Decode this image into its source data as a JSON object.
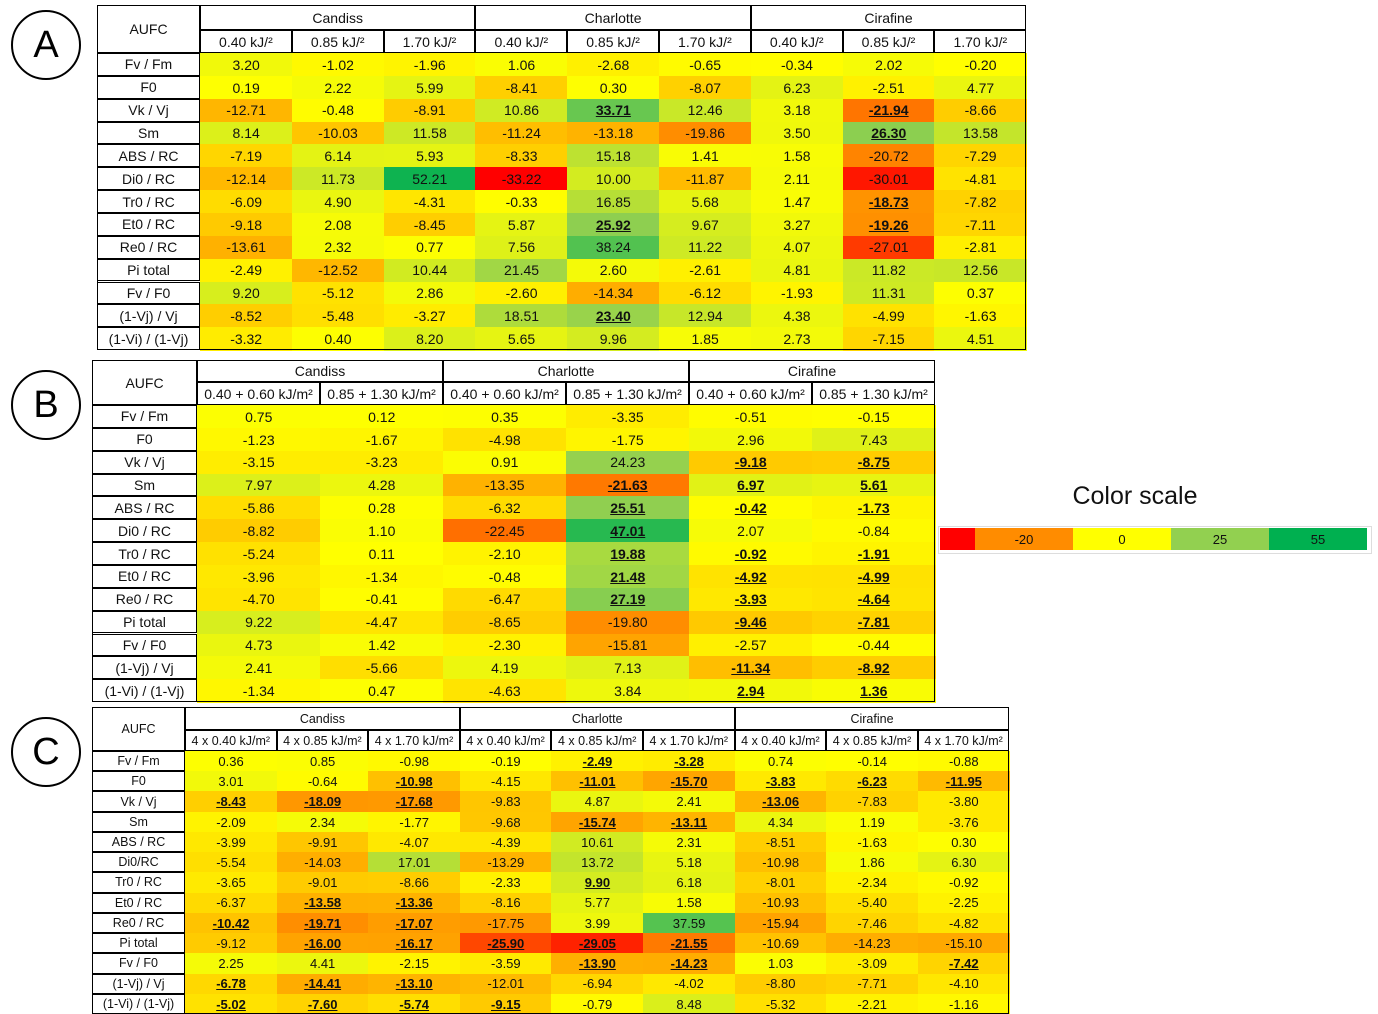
{
  "panels": [
    {
      "label": "A",
      "table": {
        "corner": "AUFC",
        "groups": [
          "Candiss",
          "Charlotte",
          "Cirafine"
        ],
        "columns": [
          "0.40 kJ/²",
          "0.85 kJ/²",
          "1.70 kJ/²",
          "0.40 kJ/²",
          "0.85 kJ/²",
          "1.70 kJ/²",
          "0.40 kJ/²",
          "0.85 kJ/²",
          "1.70 kJ/²"
        ],
        "rows": [
          {
            "label": "Fv / Fm",
            "cells": [
              "3.20",
              "-1.02",
              "-1.96",
              "1.06",
              "-2.68",
              "-0.65",
              "-0.34",
              "2.02",
              "-0.20"
            ]
          },
          {
            "label": "F0",
            "cells": [
              "0.19",
              "2.22",
              "5.99",
              "-8.41",
              "0.30",
              "-8.07",
              "6.23",
              "-2.51",
              "4.77"
            ]
          },
          {
            "label": "Vk / Vj",
            "cells": [
              "-12.71",
              "-0.48",
              "-8.91",
              "10.86",
              "33.71",
              "12.46",
              "3.18",
              "-21.94",
              "-8.66"
            ]
          },
          {
            "label": "Sm",
            "cells": [
              "8.14",
              "-10.03",
              "11.58",
              "-11.24",
              "-13.18",
              "-19.86",
              "3.50",
              "26.30",
              "13.58"
            ]
          },
          {
            "label": "ABS / RC",
            "cells": [
              "-7.19",
              "6.14",
              "5.93",
              "-8.33",
              "15.18",
              "1.41",
              "1.58",
              "-20.72",
              "-7.29"
            ]
          },
          {
            "label": "Di0 / RC",
            "cells": [
              "-12.14",
              "11.73",
              "52.21",
              "-33.22",
              "10.00",
              "-11.87",
              "2.11",
              "-30.01",
              "-4.81"
            ]
          },
          {
            "label": "Tr0 / RC",
            "cells": [
              "-6.09",
              "4.90",
              "-4.31",
              "-0.33",
              "16.85",
              "5.68",
              "1.47",
              "-18.73",
              "-7.82"
            ]
          },
          {
            "label": "Et0 / RC",
            "cells": [
              "-9.18",
              "2.08",
              "-8.45",
              "5.87",
              "25.92",
              "9.67",
              "3.27",
              "-19.26",
              "-7.11"
            ]
          },
          {
            "label": "Re0 / RC",
            "cells": [
              "-13.61",
              "2.32",
              "0.77",
              "7.56",
              "38.24",
              "11.22",
              "4.07",
              "-27.01",
              "-2.81"
            ]
          },
          {
            "label": "Pi total",
            "cells": [
              "-2.49",
              "-12.52",
              "10.44",
              "21.45",
              "2.60",
              "-2.61",
              "4.81",
              "11.82",
              "12.56"
            ]
          },
          {
            "label": "Fv / F0",
            "cells": [
              "9.20",
              "-5.12",
              "2.86",
              "-2.60",
              "-14.34",
              "-6.12",
              "-1.93",
              "11.31",
              "0.37"
            ]
          },
          {
            "label": "(1-Vj) / Vj",
            "cells": [
              "-8.52",
              "-5.48",
              "-3.27",
              "18.51",
              "23.40",
              "12.94",
              "4.38",
              "-4.99",
              "-1.63"
            ]
          },
          {
            "label": "(1-Vi) / (1-Vj)",
            "cells": [
              "-3.32",
              "0.40",
              "8.20",
              "5.65",
              "9.96",
              "1.85",
              "2.73",
              "-7.15",
              "4.51"
            ]
          }
        ],
        "underlined": [
          [
            2,
            4
          ],
          [
            2,
            7
          ],
          [
            3,
            7
          ],
          [
            6,
            7
          ],
          [
            7,
            4
          ],
          [
            7,
            7
          ],
          [
            11,
            4
          ]
        ]
      }
    },
    {
      "label": "B",
      "table": {
        "corner": "AUFC",
        "groups": [
          "Candiss",
          "Charlotte",
          "Cirafine"
        ],
        "columns": [
          "0.40 + 0.60 kJ/m²",
          "0.85 + 1.30 kJ/m²",
          "0.40 + 0.60 kJ/m²",
          "0.85 + 1.30 kJ/m²",
          "0.40 + 0.60 kJ/m²",
          "0.85 + 1.30 kJ/m²"
        ],
        "rows": [
          {
            "label": "Fv / Fm",
            "cells": [
              "0.75",
              "0.12",
              "0.35",
              "-3.35",
              "-0.51",
              "-0.15"
            ]
          },
          {
            "label": "F0",
            "cells": [
              "-1.23",
              "-1.67",
              "-4.98",
              "-1.75",
              "2.96",
              "7.43"
            ]
          },
          {
            "label": "Vk / Vj",
            "cells": [
              "-3.15",
              "-3.23",
              "0.91",
              "24.23",
              "-9.18",
              "-8.75"
            ]
          },
          {
            "label": "Sm",
            "cells": [
              "7.97",
              "4.28",
              "-13.35",
              "-21.63",
              "6.97",
              "5.61"
            ]
          },
          {
            "label": "ABS / RC",
            "cells": [
              "-5.86",
              "0.28",
              "-6.32",
              "25.51",
              "-0.42",
              "-1.73"
            ]
          },
          {
            "label": "Di0 / RC",
            "cells": [
              "-8.82",
              "1.10",
              "-22.45",
              "47.01",
              "2.07",
              "-0.84"
            ]
          },
          {
            "label": "Tr0 / RC",
            "cells": [
              "-5.24",
              "0.11",
              "-2.10",
              "19.88",
              "-0.92",
              "-1.91"
            ]
          },
          {
            "label": "Et0 / RC",
            "cells": [
              "-3.96",
              "-1.34",
              "-0.48",
              "21.48",
              "-4.92",
              "-4.99"
            ]
          },
          {
            "label": "Re0 / RC",
            "cells": [
              "-4.70",
              "-0.41",
              "-6.47",
              "27.19",
              "-3.93",
              "-4.64"
            ]
          },
          {
            "label": "Pi total",
            "cells": [
              "9.22",
              "-4.47",
              "-8.65",
              "-19.80",
              "-9.46",
              "-7.81"
            ]
          },
          {
            "label": "Fv / F0",
            "cells": [
              "4.73",
              "1.42",
              "-2.30",
              "-15.81",
              "-2.57",
              "-0.44"
            ]
          },
          {
            "label": "(1-Vj) / Vj",
            "cells": [
              "2.41",
              "-5.66",
              "4.19",
              "7.13",
              "-11.34",
              "-8.92"
            ]
          },
          {
            "label": "(1-Vi) / (1-Vj)",
            "cells": [
              "-1.34",
              "0.47",
              "-4.63",
              "3.84",
              "2.94",
              "1.36"
            ]
          }
        ],
        "underlined": [
          [
            2,
            4
          ],
          [
            2,
            5
          ],
          [
            3,
            3
          ],
          [
            3,
            4
          ],
          [
            3,
            5
          ],
          [
            4,
            3
          ],
          [
            4,
            4
          ],
          [
            4,
            5
          ],
          [
            5,
            3
          ],
          [
            6,
            3
          ],
          [
            6,
            4
          ],
          [
            6,
            5
          ],
          [
            7,
            3
          ],
          [
            7,
            4
          ],
          [
            7,
            5
          ],
          [
            8,
            3
          ],
          [
            8,
            4
          ],
          [
            8,
            5
          ],
          [
            9,
            4
          ],
          [
            9,
            5
          ],
          [
            11,
            4
          ],
          [
            11,
            5
          ],
          [
            12,
            4
          ],
          [
            12,
            5
          ]
        ]
      }
    },
    {
      "label": "C",
      "table": {
        "corner": "AUFC",
        "groups": [
          "Candiss",
          "Charlotte",
          "Cirafine"
        ],
        "columns": [
          "4 x 0.40 kJ/m²",
          "4 x 0.85 kJ/m²",
          "4 x 1.70 kJ/m²",
          "4 x 0.40 kJ/m²",
          "4 x 0.85 kJ/m²",
          "4 x 1.70 kJ/m²",
          "4 x 0.40 kJ/m²",
          "4 x 0.85 kJ/m²",
          "4 x 1.70 kJ/m²"
        ],
        "rows": [
          {
            "label": "Fv / Fm",
            "cells": [
              "0.36",
              "0.85",
              "-0.98",
              "-0.19",
              "-2.49",
              "-3.28",
              "0.74",
              "-0.14",
              "-0.88"
            ]
          },
          {
            "label": "F0",
            "cells": [
              "3.01",
              "-0.64",
              "-10.98",
              "-4.15",
              "-11.01",
              "-15.70",
              "-3.83",
              "-6.23",
              "-11.95"
            ]
          },
          {
            "label": "Vk / Vj",
            "cells": [
              "-8.43",
              "-18.09",
              "-17.68",
              "-9.83",
              "4.87",
              "2.41",
              "-13.06",
              "-7.83",
              "-3.80"
            ]
          },
          {
            "label": "Sm",
            "cells": [
              "-2.09",
              "2.34",
              "-1.77",
              "-9.68",
              "-15.74",
              "-13.11",
              "4.34",
              "1.19",
              "-3.76"
            ]
          },
          {
            "label": "ABS / RC",
            "cells": [
              "-3.99",
              "-9.91",
              "-4.07",
              "-4.39",
              "10.61",
              "2.31",
              "-8.51",
              "-1.63",
              "0.30"
            ]
          },
          {
            "label": "Di0/RC",
            "cells": [
              "-5.54",
              "-14.03",
              "17.01",
              "-13.29",
              "13.72",
              "5.18",
              "-10.98",
              "1.86",
              "6.30"
            ]
          },
          {
            "label": "Tr0 / RC",
            "cells": [
              "-3.65",
              "-9.01",
              "-8.66",
              "-2.33",
              "9.90",
              "6.18",
              "-8.01",
              "-2.34",
              "-0.92"
            ]
          },
          {
            "label": "Et0 / RC",
            "cells": [
              "-6.37",
              "-13.58",
              "-13.36",
              "-8.16",
              "5.77",
              "1.58",
              "-10.93",
              "-5.40",
              "-2.25"
            ]
          },
          {
            "label": "Re0 / RC",
            "cells": [
              "-10.42",
              "-19.71",
              "-17.07",
              "-17.75",
              "3.99",
              "37.59",
              "-15.94",
              "-7.46",
              "-4.82"
            ]
          },
          {
            "label": "Pi total",
            "cells": [
              "-9.12",
              "-16.00",
              "-16.17",
              "-25.90",
              "-29.05",
              "-21.55",
              "-10.69",
              "-14.23",
              "-15.10"
            ]
          },
          {
            "label": "Fv / F0",
            "cells": [
              "2.25",
              "4.41",
              "-2.15",
              "-3.59",
              "-13.90",
              "-14.23",
              "1.03",
              "-3.09",
              "-7.42"
            ]
          },
          {
            "label": "(1-Vj) / Vj",
            "cells": [
              "-6.78",
              "-14.41",
              "-13.10",
              "-12.01",
              "-6.94",
              "-4.02",
              "-8.80",
              "-7.71",
              "-4.10"
            ]
          },
          {
            "label": "(1-Vi) / (1-Vj)",
            "cells": [
              "-5.02",
              "-7.60",
              "-5.74",
              "-9.15",
              "-0.79",
              "8.48",
              "-5.32",
              "-2.21",
              "-1.16"
            ]
          }
        ],
        "underlined": [
          [
            0,
            4
          ],
          [
            0,
            5
          ],
          [
            1,
            2
          ],
          [
            1,
            4
          ],
          [
            1,
            5
          ],
          [
            1,
            6
          ],
          [
            1,
            7
          ],
          [
            1,
            8
          ],
          [
            2,
            0
          ],
          [
            2,
            1
          ],
          [
            2,
            2
          ],
          [
            2,
            6
          ],
          [
            3,
            4
          ],
          [
            3,
            5
          ],
          [
            6,
            4
          ],
          [
            7,
            1
          ],
          [
            7,
            2
          ],
          [
            8,
            0
          ],
          [
            8,
            1
          ],
          [
            8,
            2
          ],
          [
            9,
            1
          ],
          [
            9,
            2
          ],
          [
            9,
            3
          ],
          [
            9,
            4
          ],
          [
            9,
            5
          ],
          [
            10,
            4
          ],
          [
            10,
            5
          ],
          [
            10,
            8
          ],
          [
            11,
            0
          ],
          [
            11,
            1
          ],
          [
            11,
            2
          ],
          [
            12,
            0
          ],
          [
            12,
            1
          ],
          [
            12,
            2
          ],
          [
            12,
            3
          ]
        ]
      }
    }
  ],
  "color_scale": {
    "title": "Color scale",
    "values": [
      null,
      -20,
      0,
      25,
      55
    ],
    "colors": [
      "#ff0000",
      "#ff8c00",
      "#ffff00",
      "#92d050",
      "#00b050"
    ]
  }
}
